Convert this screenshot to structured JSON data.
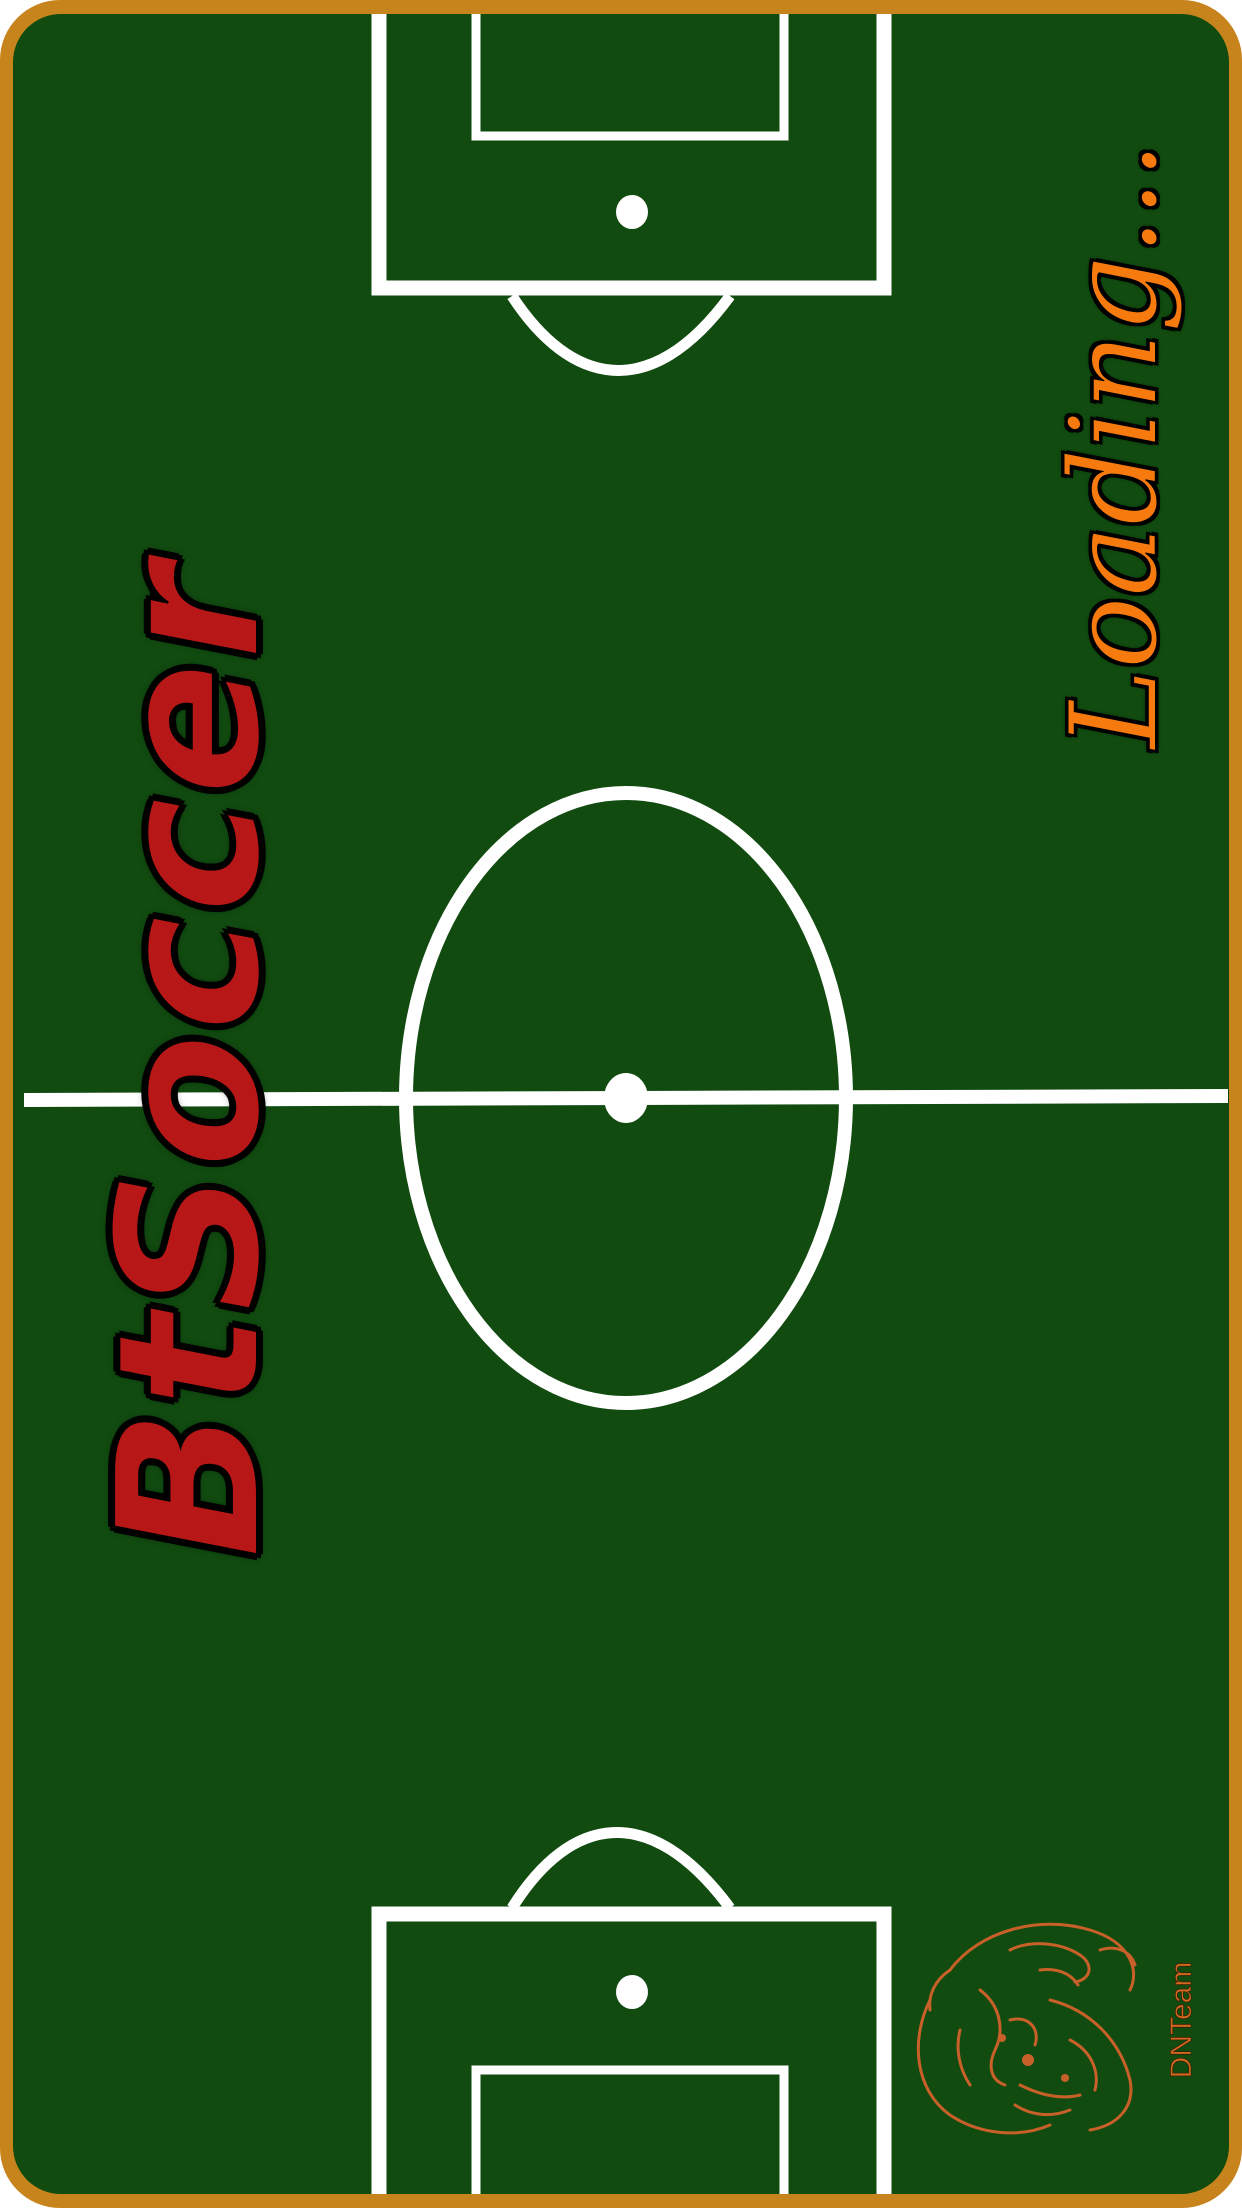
{
  "title": "BtSoccer",
  "status": {
    "loading_label": "Loading..."
  },
  "branding": {
    "team_label": "DNTeam"
  },
  "colors": {
    "frame": "#c8841c",
    "pitch": "#114b10",
    "lines": "#ffffff",
    "title": "#b71717",
    "loading": "#f77a0f",
    "logo": "#c8602a"
  },
  "icons": {
    "logo": "mascot-face-icon"
  }
}
